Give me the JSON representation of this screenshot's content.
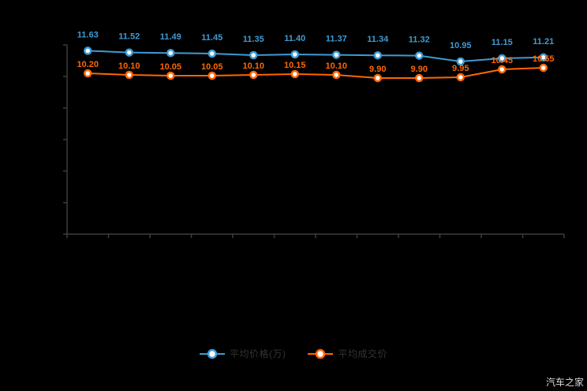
{
  "chart_data": {
    "type": "line",
    "title": "",
    "x_count": 12,
    "xlabel": "",
    "ylabel": "",
    "ylim": [
      0,
      12
    ],
    "y_tick_step": 2,
    "grid": false,
    "legend_position": "bottom",
    "axis_color": "#3c3c3c",
    "x_tick_labels_visible": false,
    "y_tick_labels_visible": false,
    "series": [
      {
        "name": "平均价格(万)",
        "color": "#3e9bd5",
        "values": [
          11.63,
          11.52,
          11.49,
          11.45,
          11.35,
          11.4,
          11.37,
          11.34,
          11.32,
          10.95,
          11.15,
          11.21
        ]
      },
      {
        "name": "平均成交价",
        "color": "#ff6600",
        "values": [
          10.2,
          10.1,
          10.05,
          10.05,
          10.1,
          10.15,
          10.1,
          9.9,
          9.9,
          9.95,
          10.45,
          10.55
        ]
      }
    ]
  },
  "legend": {
    "items": [
      {
        "label": "平均价格(万)",
        "color": "#3e9bd5"
      },
      {
        "label": "平均成交价",
        "color": "#ff6600"
      }
    ]
  },
  "watermark": "汽车之家"
}
